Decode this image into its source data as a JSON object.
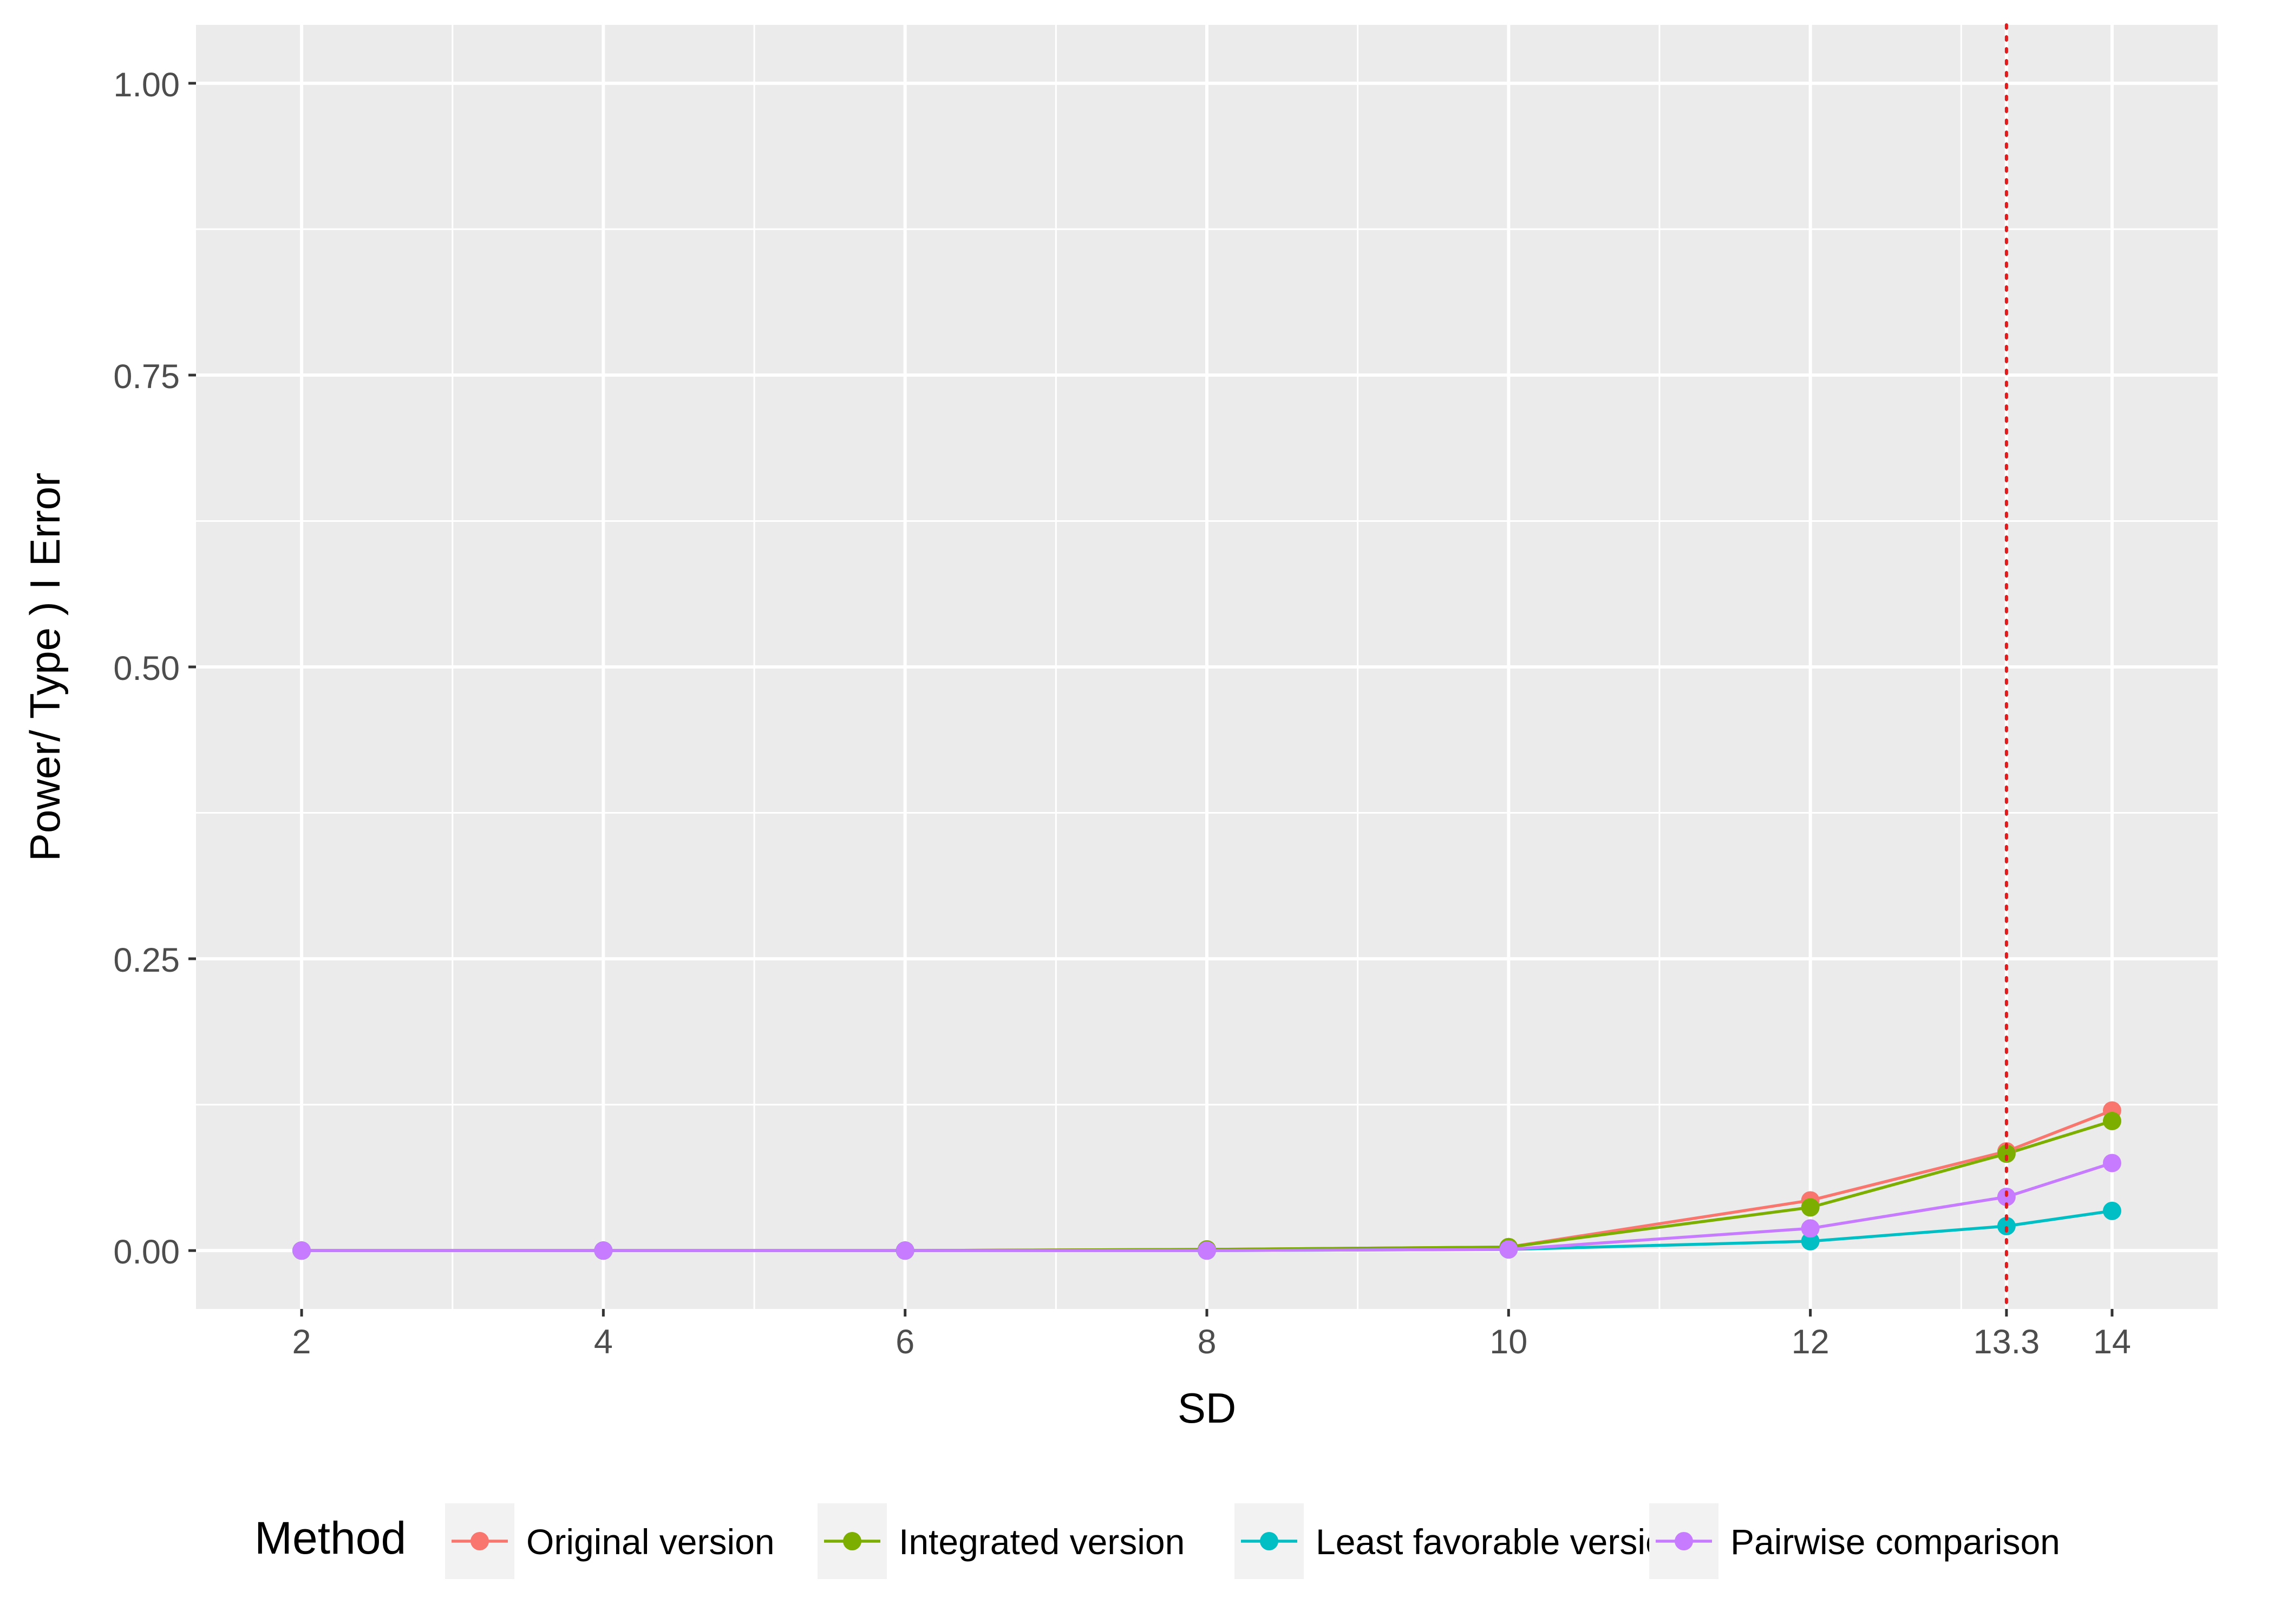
{
  "chart_data": {
    "type": "line",
    "xlabel": "SD",
    "ylabel": "Power/ Type ) I  Error",
    "xlim": [
      1.3,
      14.7
    ],
    "ylim": [
      -0.05,
      1.05
    ],
    "x_ticks": [
      2,
      4,
      6,
      8,
      10,
      12,
      13.3,
      14
    ],
    "x_tick_labels": [
      "2",
      "4",
      "6",
      "8",
      "10",
      "12",
      "13.3",
      "14"
    ],
    "x_minor_gridlines": [
      3,
      5,
      7,
      9,
      11,
      13
    ],
    "y_ticks": [
      0,
      0.25,
      0.5,
      0.75,
      1.0
    ],
    "y_tick_labels": [
      "0.00",
      "0.25",
      "0.50",
      "0.75",
      "1.00"
    ],
    "y_minor_gridlines": [
      0.125,
      0.375,
      0.625,
      0.875
    ],
    "grid": true,
    "legend_position": "bottom",
    "legend_title": "Method",
    "x": [
      2,
      4,
      6,
      8,
      10,
      12,
      13.3,
      14
    ],
    "series": [
      {
        "name": "Original version",
        "color": "#F8766D",
        "values": [
          0,
          0,
          0,
          0.001,
          0.003,
          0.043,
          0.085,
          0.12
        ]
      },
      {
        "name": "Integrated version",
        "color": "#7CAE00",
        "values": [
          0,
          0,
          0,
          0.001,
          0.003,
          0.037,
          0.083,
          0.111
        ]
      },
      {
        "name": "Least favorable version",
        "color": "#00BFC4",
        "values": [
          0,
          0,
          0,
          0,
          0.001,
          0.008,
          0.021,
          0.034
        ]
      },
      {
        "name": "Pairwise comparison",
        "color": "#C77CFF",
        "values": [
          0,
          0,
          0,
          0,
          0.001,
          0.019,
          0.046,
          0.075
        ]
      }
    ],
    "reference_line": {
      "x": 13.3,
      "color": "#E31A1C",
      "style": "dotted"
    },
    "panel_background": "#EBEBEB",
    "grid_color": "#FFFFFF",
    "legend_key_background": "#F2F2F2"
  }
}
